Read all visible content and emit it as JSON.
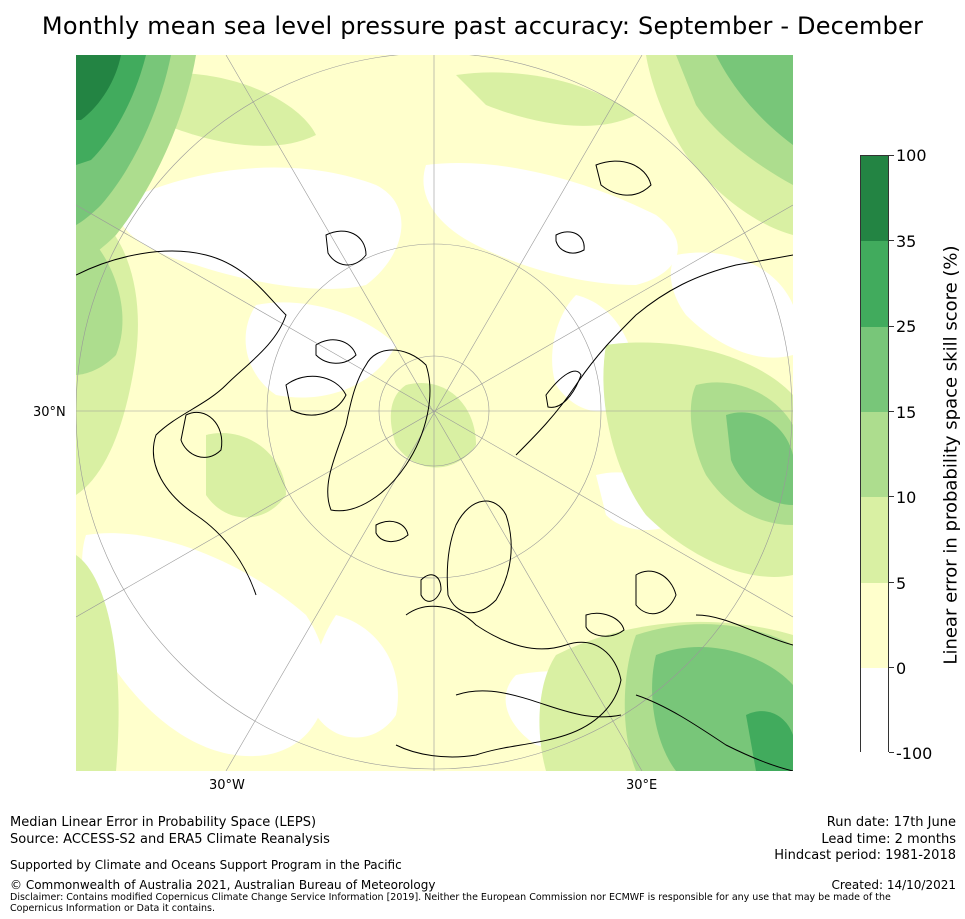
{
  "title": "Monthly mean sea level pressure past accuracy: September - December",
  "map": {
    "latitude_labels": [
      "30°N"
    ],
    "longitude_labels": [
      "30°W",
      "30°E"
    ],
    "region_colors": {
      "band_neg100_0": "#ffffff",
      "band_0_5": "#ffffcc",
      "band_5_10": "#d9f0a3",
      "band_10_15": "#addd8e",
      "band_15_25": "#78c679",
      "band_25_35": "#41ab5d",
      "band_35_100": "#238443"
    }
  },
  "colorbar": {
    "title": "Linear error in probability space skill score (%)",
    "ticks": [
      "100",
      "35",
      "25",
      "15",
      "10",
      "5",
      "0",
      "-100"
    ],
    "segments": [
      {
        "range": "35–100",
        "color": "#238443"
      },
      {
        "range": "25–35",
        "color": "#41ab5d"
      },
      {
        "range": "15–25",
        "color": "#78c679"
      },
      {
        "range": "10–15",
        "color": "#addd8e"
      },
      {
        "range": "5–10",
        "color": "#d9f0a3"
      },
      {
        "range": "0–5",
        "color": "#ffffcc"
      },
      {
        "range": "-100–0",
        "color": "#ffffff"
      }
    ]
  },
  "footer": {
    "line1": "Median Linear Error in Probability Space (LEPS)",
    "line2": "Source: ACCESS-S2 and ERA5 Climate Reanalysis",
    "support": "Supported by Climate and Oceans Support Program in the Pacific",
    "copyright": "© Commonwealth of Australia 2021, Australian Bureau of Meteorology",
    "disclaimer": "Disclaimer: Contains modified Copernicus Climate Change Service Information [2019]. Neither the European Commission nor ECMWF is responsible for any use that may be made of the Copernicus Information or Data it contains.",
    "run_date": "Run date: 17th June",
    "lead_time": "Lead time: 2 months",
    "hindcast": "Hindcast period: 1981-2018",
    "created": "Created: 14/10/2021"
  }
}
